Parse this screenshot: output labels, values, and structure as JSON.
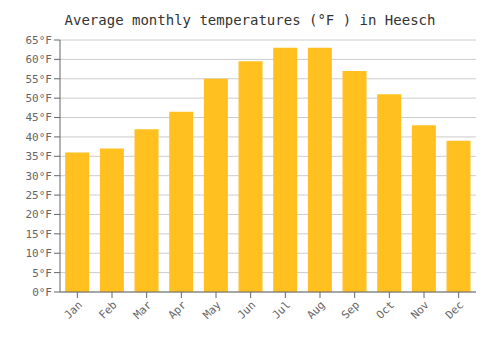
{
  "chart_data": {
    "type": "bar",
    "title": "Average monthly temperatures (°F ) in Heesch",
    "categories": [
      "Jan",
      "Feb",
      "Mar",
      "Apr",
      "May",
      "Jun",
      "Jul",
      "Aug",
      "Sep",
      "Oct",
      "Nov",
      "Dec"
    ],
    "values": [
      36,
      37,
      42,
      46.5,
      55,
      59.5,
      63,
      63,
      57,
      51,
      43,
      39
    ],
    "color": "#FFC020",
    "ylim": [
      0,
      65
    ],
    "yticks": [
      {
        "value": 0,
        "label": "0°F"
      },
      {
        "value": 5,
        "label": "5°F"
      },
      {
        "value": 10,
        "label": "10°F"
      },
      {
        "value": 15,
        "label": "15°F"
      },
      {
        "value": 20,
        "label": "20°F"
      },
      {
        "value": 25,
        "label": "25°F"
      },
      {
        "value": 30,
        "label": "30°F"
      },
      {
        "value": 35,
        "label": "35°F"
      },
      {
        "value": 40,
        "label": "40°F"
      },
      {
        "value": 45,
        "label": "45°F"
      },
      {
        "value": 50,
        "label": "50°F"
      },
      {
        "value": 55,
        "label": "55°F"
      },
      {
        "value": 60,
        "label": "60°F"
      },
      {
        "value": 65,
        "label": "65°F"
      }
    ],
    "grid": true
  }
}
